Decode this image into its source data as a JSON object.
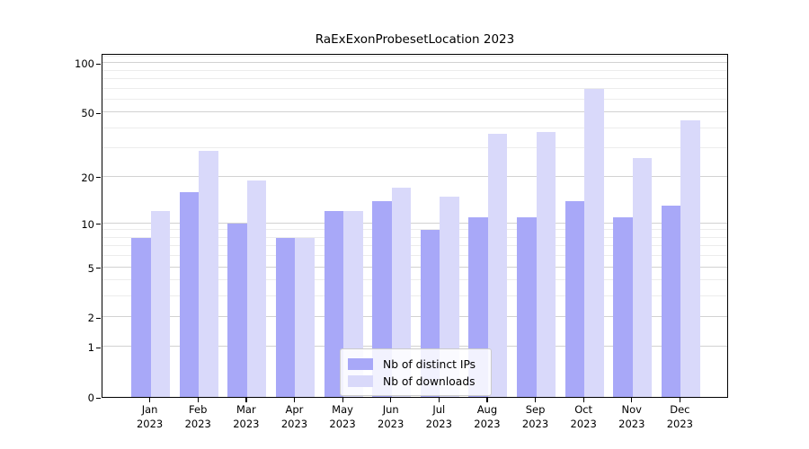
{
  "title": "RaExExonProbesetLocation 2023",
  "chart_data": {
    "type": "bar",
    "categories": [
      "Jan",
      "Feb",
      "Mar",
      "Apr",
      "May",
      "Jun",
      "Jul",
      "Aug",
      "Sep",
      "Oct",
      "Nov",
      "Dec"
    ],
    "xtick_year_line": "2023",
    "series": [
      {
        "name": "Nb of distinct IPs",
        "color": "#a8a8f8",
        "values": [
          8,
          16,
          10,
          8,
          12,
          14,
          9,
          11,
          11,
          14,
          11,
          13
        ]
      },
      {
        "name": "Nb of downloads",
        "color": "#d9d9fa",
        "values": [
          12,
          29,
          19,
          8,
          12,
          17,
          15,
          37,
          38,
          70,
          26,
          45
        ]
      }
    ],
    "title": "RaExExonProbesetLocation 2023",
    "xlabel": "",
    "ylabel": "",
    "yscale": "log10(1+y)",
    "ylim": [
      0,
      114
    ],
    "yticks": [
      0,
      1,
      2,
      5,
      10,
      20,
      50,
      100
    ],
    "yticks_minor": [
      3,
      4,
      6,
      7,
      8,
      9,
      30,
      40,
      60,
      70,
      80,
      90,
      110
    ],
    "grid": true,
    "legend_position": "bottom-center",
    "colors": {
      "axis": "#000000",
      "grid_major": "#d2d2d2",
      "grid_minor": "#ececec",
      "background": "#ffffff"
    }
  }
}
